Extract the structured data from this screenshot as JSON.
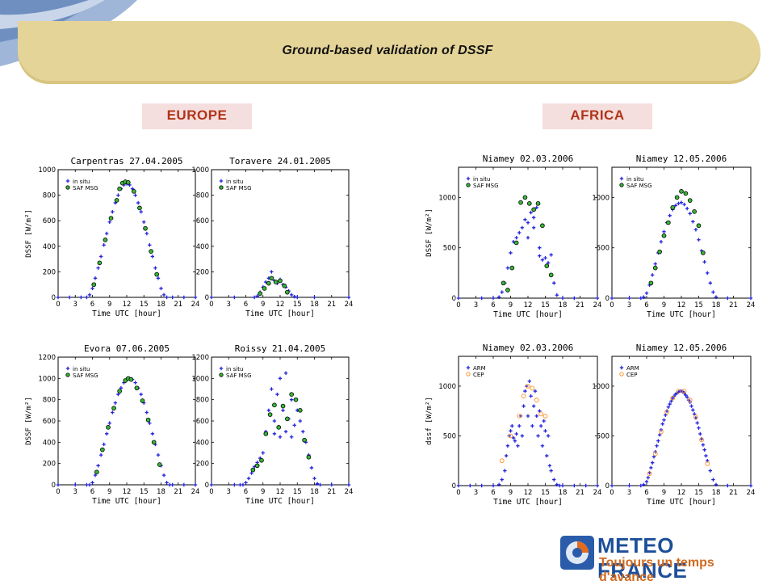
{
  "header": {
    "title": "Ground-based validation of DSSF"
  },
  "regions": {
    "left": "EUROPE",
    "right": "AFRICA"
  },
  "brand": {
    "name": "METEO FRANCE",
    "tagline": "Toujours un temps d'avance"
  },
  "colors": {
    "series_insitu": "#2222dd",
    "series_saf_fill": "#33bb33",
    "series_saf_stroke": "#111111",
    "series_cep": "#ff8c1a",
    "banner": "#e5d498",
    "region_text": "#b03418"
  },
  "chart_data": [
    {
      "type": "scatter",
      "title": "Carpentras 27.04.2005",
      "xlabel": "Time UTC [hour]",
      "ylabel": "DSSF [W/m²]",
      "xlim": [
        0,
        24
      ],
      "ylim": [
        0,
        1000
      ],
      "yticks": [
        0,
        200,
        400,
        600,
        800,
        1000
      ],
      "xticks": [
        0,
        3,
        6,
        9,
        12,
        15,
        18,
        21,
        24
      ],
      "series": [
        {
          "name": "in situ",
          "x": [
            0,
            2,
            4,
            5,
            5.5,
            6,
            6.5,
            7,
            7.5,
            8,
            8.5,
            9,
            9.5,
            10,
            10.5,
            11,
            11.5,
            12,
            12.5,
            13,
            13.5,
            14,
            14.5,
            15,
            15.5,
            16,
            16.5,
            17,
            17.5,
            18,
            18.5,
            19,
            20,
            22,
            24
          ],
          "y": [
            0,
            0,
            0,
            0,
            20,
            70,
            150,
            230,
            320,
            410,
            500,
            590,
            670,
            740,
            800,
            850,
            880,
            890,
            880,
            850,
            800,
            740,
            670,
            590,
            500,
            410,
            320,
            230,
            150,
            70,
            20,
            0,
            0,
            0,
            0
          ]
        },
        {
          "name": "SAF MSG",
          "x": [
            6.25,
            7.25,
            8.25,
            9.25,
            10.25,
            10.75,
            11.25,
            11.75,
            12.25,
            13.25,
            14.25,
            15.25,
            16.25,
            17.25
          ],
          "y": [
            100,
            270,
            450,
            620,
            760,
            850,
            895,
            905,
            900,
            830,
            700,
            540,
            360,
            180
          ]
        }
      ]
    },
    {
      "type": "scatter",
      "title": "Toravere 24.01.2005",
      "xlabel": "Time UTC [hour]",
      "ylabel": "",
      "xlim": [
        0,
        24
      ],
      "ylim": [
        0,
        1000
      ],
      "yticks": [
        0,
        200,
        400,
        600,
        800,
        1000
      ],
      "xticks": [
        0,
        3,
        6,
        9,
        12,
        15,
        18,
        21,
        24
      ],
      "series": [
        {
          "name": "in situ",
          "x": [
            0,
            4,
            7.5,
            8,
            8.5,
            9,
            9.5,
            10,
            10.5,
            11,
            11.5,
            12,
            12.5,
            13,
            13.5,
            14,
            14.5,
            15,
            18,
            24
          ],
          "y": [
            0,
            0,
            0,
            10,
            40,
            80,
            120,
            150,
            200,
            130,
            110,
            140,
            100,
            80,
            50,
            20,
            5,
            0,
            0,
            0
          ]
        },
        {
          "name": "SAF MSG",
          "x": [
            8.5,
            9.25,
            10,
            10.5,
            11.25,
            12,
            12.75,
            13.25
          ],
          "y": [
            30,
            70,
            110,
            150,
            120,
            130,
            90,
            40
          ]
        }
      ]
    },
    {
      "type": "scatter",
      "title": "Evora 07.06.2005",
      "xlabel": "Time UTC [hour]",
      "ylabel": "DSSF [W/m²]",
      "xlim": [
        0,
        24
      ],
      "ylim": [
        0,
        1200
      ],
      "yticks": [
        0,
        200,
        400,
        600,
        800,
        1000,
        1200
      ],
      "xticks": [
        0,
        3,
        6,
        9,
        12,
        15,
        18,
        21,
        24
      ],
      "series": [
        {
          "name": "in situ",
          "x": [
            0,
            3,
            5,
            5.5,
            6,
            6.5,
            7,
            7.5,
            8,
            8.5,
            9,
            9.5,
            10,
            10.5,
            11,
            11.5,
            12,
            12.5,
            13,
            13.5,
            14,
            14.5,
            15,
            15.5,
            16,
            16.5,
            17,
            17.5,
            18,
            18.5,
            19,
            19.5,
            20,
            22,
            24
          ],
          "y": [
            0,
            0,
            0,
            0,
            20,
            90,
            180,
            280,
            380,
            480,
            580,
            680,
            770,
            850,
            910,
            960,
            990,
            1000,
            990,
            960,
            910,
            850,
            770,
            680,
            580,
            480,
            380,
            280,
            180,
            90,
            20,
            0,
            0,
            0,
            0
          ]
        },
        {
          "name": "SAF MSG",
          "x": [
            6.75,
            7.75,
            8.75,
            9.75,
            10.75,
            11.75,
            12.25,
            12.75,
            13.75,
            14.75,
            15.75,
            16.75,
            17.75
          ],
          "y": [
            120,
            330,
            540,
            720,
            880,
            980,
            1000,
            990,
            910,
            790,
            610,
            400,
            190
          ]
        }
      ]
    },
    {
      "type": "scatter",
      "title": "Roissy 21.04.2005",
      "xlabel": "Time UTC [hour]",
      "ylabel": "",
      "xlim": [
        0,
        24
      ],
      "ylim": [
        0,
        1200
      ],
      "yticks": [
        0,
        200,
        400,
        600,
        800,
        1000,
        1200
      ],
      "xticks": [
        0,
        3,
        6,
        9,
        12,
        15,
        18,
        21,
        24
      ],
      "series": [
        {
          "name": "in situ",
          "x": [
            0,
            4,
            5,
            5.5,
            6,
            6.5,
            7,
            7.5,
            8,
            8.5,
            9,
            9.5,
            10,
            10.5,
            11,
            11,
            11.5,
            12,
            12,
            12.5,
            13,
            13,
            13.5,
            14,
            14,
            14.5,
            15,
            15.5,
            16,
            16.5,
            17,
            17.5,
            18,
            18.5,
            19,
            21,
            24
          ],
          "y": [
            0,
            0,
            0,
            0,
            20,
            60,
            110,
            170,
            210,
            250,
            300,
            500,
            700,
            900,
            480,
            600,
            850,
            1000,
            450,
            700,
            1050,
            500,
            620,
            800,
            450,
            560,
            700,
            600,
            500,
            400,
            280,
            160,
            60,
            10,
            0,
            0,
            0
          ]
        },
        {
          "name": "SAF MSG",
          "x": [
            7.25,
            8,
            8.75,
            9.5,
            10.25,
            11,
            11.75,
            12.5,
            13.25,
            14,
            14.75,
            15.5,
            16.25,
            17
          ],
          "y": [
            140,
            180,
            230,
            480,
            660,
            750,
            540,
            740,
            620,
            850,
            800,
            700,
            420,
            260
          ]
        }
      ]
    },
    {
      "type": "scatter",
      "title": "Niamey 02.03.2006",
      "xlabel": "Time UTC [hour]",
      "ylabel": "DSSF [W/m²]",
      "xlim": [
        0,
        24
      ],
      "ylim": [
        0,
        1300
      ],
      "yticks": [
        0,
        500,
        1000
      ],
      "xticks": [
        0,
        3,
        6,
        9,
        12,
        15,
        18,
        21,
        24
      ],
      "series": [
        {
          "name": "in situ",
          "x": [
            0,
            4,
            6,
            7,
            7.5,
            8,
            8.5,
            9,
            9.5,
            10,
            10.5,
            11,
            11.5,
            12,
            12,
            12.5,
            13,
            13,
            13.5,
            14,
            14,
            14.5,
            15,
            15.5,
            16,
            16.5,
            17,
            18,
            20,
            24
          ],
          "y": [
            0,
            0,
            0,
            10,
            60,
            150,
            300,
            450,
            560,
            600,
            650,
            700,
            780,
            750,
            600,
            850,
            700,
            800,
            900,
            500,
            420,
            380,
            400,
            350,
            430,
            150,
            30,
            0,
            0,
            0
          ]
        },
        {
          "name": "SAF MSG",
          "x": [
            7.75,
            8.5,
            9.25,
            10,
            10.75,
            11.5,
            12.25,
            13,
            13.75,
            14.5,
            15.25,
            16
          ],
          "y": [
            150,
            80,
            300,
            550,
            950,
            1000,
            940,
            880,
            940,
            720,
            320,
            230
          ]
        }
      ]
    },
    {
      "type": "scatter",
      "title": "Niamey 12.05.2006",
      "xlabel": "Time UTC [hour]",
      "ylabel": "",
      "xlim": [
        0,
        24
      ],
      "ylim": [
        0,
        1300
      ],
      "yticks": [
        0,
        500,
        1000
      ],
      "xticks": [
        0,
        3,
        6,
        9,
        12,
        15,
        18,
        21,
        24
      ],
      "series": [
        {
          "name": "in situ",
          "x": [
            0,
            3,
            5,
            5.5,
            6,
            6.5,
            7,
            7.5,
            8,
            8.5,
            9,
            9.5,
            10,
            10.5,
            11,
            11.5,
            12,
            12.5,
            13,
            13.5,
            14,
            14.5,
            15,
            15.5,
            16,
            16.5,
            17,
            17.5,
            18,
            20,
            24
          ],
          "y": [
            0,
            0,
            0,
            10,
            50,
            130,
            230,
            340,
            450,
            560,
            660,
            750,
            820,
            880,
            920,
            940,
            950,
            930,
            890,
            840,
            760,
            680,
            580,
            470,
            360,
            250,
            150,
            60,
            10,
            0,
            0
          ]
        },
        {
          "name": "SAF MSG",
          "x": [
            6.75,
            7.5,
            8.25,
            9,
            9.75,
            10.5,
            11.25,
            12,
            12.75,
            13.5,
            14.25,
            15,
            15.75
          ],
          "y": [
            150,
            300,
            460,
            620,
            750,
            900,
            1000,
            1060,
            1040,
            970,
            860,
            720,
            450
          ]
        }
      ]
    },
    {
      "type": "scatter",
      "title": "Niamey 02.03.2006",
      "xlabel": "Time UTC [hour]",
      "ylabel": "dssf [W/m²]",
      "xlim": [
        0,
        24
      ],
      "ylim": [
        0,
        1300
      ],
      "yticks": [
        0,
        500,
        1000
      ],
      "xticks": [
        0,
        3,
        6,
        9,
        12,
        15,
        18,
        21,
        24
      ],
      "series": [
        {
          "name": "ARM",
          "x": [
            0,
            2,
            4,
            6,
            7,
            7.5,
            8,
            8.25,
            8.5,
            8.75,
            9,
            9.25,
            9.5,
            9.75,
            10,
            10.25,
            10.5,
            10.75,
            11,
            11.25,
            11.5,
            11.75,
            12,
            12.25,
            12.5,
            12.75,
            13,
            13.25,
            13.5,
            13.75,
            14,
            14.25,
            14.5,
            14.75,
            15,
            15.25,
            15.5,
            15.75,
            16,
            16.5,
            17,
            17.5,
            18,
            20,
            22,
            24
          ],
          "y": [
            0,
            0,
            0,
            0,
            10,
            60,
            150,
            300,
            400,
            500,
            550,
            600,
            480,
            450,
            520,
            400,
            600,
            700,
            500,
            800,
            950,
            1000,
            700,
            1050,
            900,
            600,
            800,
            950,
            700,
            500,
            750,
            600,
            400,
            650,
            550,
            300,
            500,
            200,
            150,
            60,
            10,
            0,
            0,
            0,
            0,
            0
          ]
        },
        {
          "name": "CEP",
          "x": [
            7.5,
            9,
            10.5,
            11.25,
            12,
            12.75,
            13.5,
            14.25,
            15
          ],
          "y": [
            250,
            500,
            700,
            900,
            1000,
            980,
            860,
            720,
            700
          ]
        }
      ]
    },
    {
      "type": "scatter",
      "title": "Niamey 12.05.2006",
      "xlabel": "Time UTC [hour]",
      "ylabel": "",
      "xlim": [
        0,
        24
      ],
      "ylim": [
        0,
        1300
      ],
      "yticks": [
        0,
        500,
        1000
      ],
      "xticks": [
        0,
        3,
        6,
        9,
        12,
        15,
        18,
        21,
        24
      ],
      "series": [
        {
          "name": "ARM",
          "x": [
            0,
            3,
            5,
            5.5,
            6,
            6.25,
            6.5,
            6.75,
            7,
            7.25,
            7.5,
            7.75,
            8,
            8.25,
            8.5,
            8.75,
            9,
            9.25,
            9.5,
            9.75,
            10,
            10.25,
            10.5,
            10.75,
            11,
            11.25,
            11.5,
            11.75,
            12,
            12.25,
            12.5,
            12.75,
            13,
            13.25,
            13.5,
            13.75,
            14,
            14.25,
            14.5,
            14.75,
            15,
            15.25,
            15.5,
            15.75,
            16,
            16.25,
            16.5,
            17,
            17.5,
            18,
            20,
            24
          ],
          "y": [
            0,
            0,
            0,
            10,
            40,
            80,
            130,
            180,
            230,
            290,
            340,
            400,
            450,
            510,
            560,
            620,
            660,
            710,
            750,
            790,
            820,
            850,
            880,
            900,
            920,
            930,
            940,
            950,
            950,
            945,
            930,
            910,
            890,
            860,
            840,
            800,
            760,
            720,
            680,
            630,
            580,
            520,
            470,
            410,
            360,
            300,
            250,
            150,
            60,
            10,
            0,
            0
          ]
        },
        {
          "name": "CEP",
          "x": [
            6.5,
            7.5,
            8.5,
            9.5,
            10.5,
            11.5,
            12.5,
            13.5,
            14.5,
            15.5,
            16.5
          ],
          "y": [
            120,
            320,
            540,
            740,
            880,
            950,
            950,
            860,
            690,
            460,
            220
          ]
        }
      ]
    }
  ]
}
